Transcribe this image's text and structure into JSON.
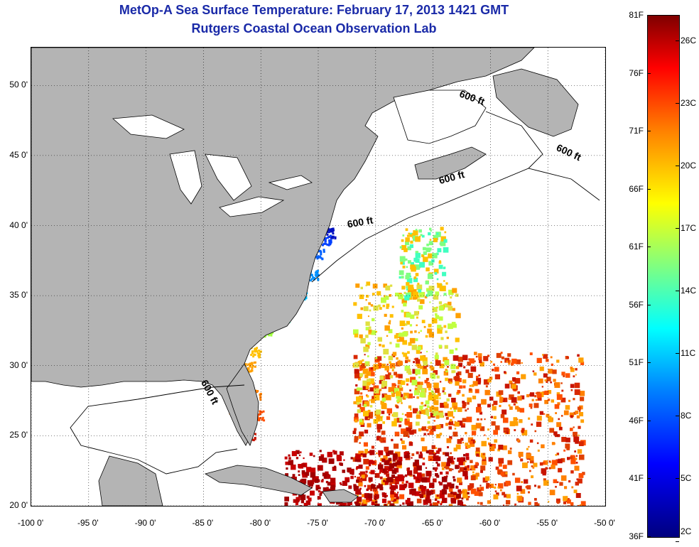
{
  "title_line1": "MetOp-A Sea Surface Temperature:  February 17, 2013 1421 GMT",
  "title_line2": "Rutgers Coastal Ocean Observation Lab",
  "map": {
    "lon_range": [
      -100,
      -50
    ],
    "lat_range": [
      20,
      52.7
    ],
    "lon_ticks": [
      {
        "value": -100,
        "label": "-100 0'"
      },
      {
        "value": -95,
        "label": "-95 0'"
      },
      {
        "value": -90,
        "label": "-90 0'"
      },
      {
        "value": -85,
        "label": "-85 0'"
      },
      {
        "value": -80,
        "label": "-80 0'"
      },
      {
        "value": -75,
        "label": "-75 0'"
      },
      {
        "value": -70,
        "label": "-70 0'"
      },
      {
        "value": -65,
        "label": "-65 0'"
      },
      {
        "value": -60,
        "label": "-60 0'"
      },
      {
        "value": -55,
        "label": "-55 0'"
      },
      {
        "value": -50,
        "label": "-50 0'"
      }
    ],
    "lat_ticks": [
      {
        "value": 20,
        "label": "20 0'"
      },
      {
        "value": 25,
        "label": "25 0'"
      },
      {
        "value": 30,
        "label": "30 0'"
      },
      {
        "value": 35,
        "label": "35 0'"
      },
      {
        "value": 40,
        "label": "40 0'"
      },
      {
        "value": 45,
        "label": "45 0'"
      },
      {
        "value": 50,
        "label": "50 0'"
      }
    ],
    "grid": "dotted",
    "land_color": "#b4b4b4",
    "isobath_labels": [
      {
        "text": "600 ft",
        "lon": -61.7,
        "lat": 48.9,
        "rotate": 20
      },
      {
        "text": "600 ft",
        "lon": -53.3,
        "lat": 45.0,
        "rotate": 25
      },
      {
        "text": "600 ft",
        "lon": -63.3,
        "lat": 43.2,
        "rotate": -15
      },
      {
        "text": "600 ft",
        "lon": -71.3,
        "lat": 40.0,
        "rotate": -10
      },
      {
        "text": "600 ft",
        "lon": -84.7,
        "lat": 28.0,
        "rotate": 62
      }
    ]
  },
  "colorbar": {
    "range_f": [
      36,
      81
    ],
    "fahrenheit_labels": [
      "81F",
      "76F",
      "71F",
      "66F",
      "61F",
      "56F",
      "51F",
      "46F",
      "41F",
      "36F"
    ],
    "celsius_labels": [
      "26C",
      "23C",
      "20C",
      "17C",
      "14C",
      "11C",
      "8C",
      "5C",
      "2C"
    ],
    "colors": [
      "#00007f",
      "#0000ff",
      "#0080ff",
      "#00ffff",
      "#80ff80",
      "#ffff00",
      "#ff8000",
      "#ff0000",
      "#7f0000"
    ]
  }
}
